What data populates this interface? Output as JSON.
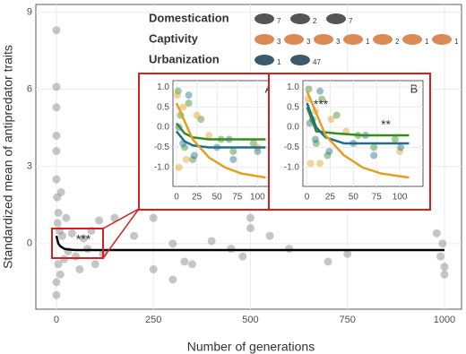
{
  "chart_data": [
    {
      "type": "scatter",
      "xlabel": "Number of generations",
      "ylabel": "Standardized mean of antipredator traits",
      "xlim": [
        -53,
        1044
      ],
      "ylim": [
        -2.55,
        9.3
      ],
      "xticks": [
        0,
        250,
        500,
        750,
        1000
      ],
      "yticks": [
        0,
        3,
        6,
        9
      ],
      "grid": true,
      "annotation": "***",
      "legend": [
        {
          "label": "Domestication",
          "color": "#3a8a1e",
          "counts": [
            7,
            2,
            7
          ]
        },
        {
          "label": "Captivity",
          "color": "#e0a020",
          "counts": [
            3,
            3,
            3,
            1,
            2,
            1,
            1
          ]
        },
        {
          "label": "Urbanization",
          "color": "#1f6f8b",
          "counts": [
            1,
            47
          ]
        }
      ],
      "series": [
        {
          "kind": "points",
          "color": "#808080",
          "x": [
            0,
            0,
            0,
            0,
            0,
            0,
            0,
            0,
            2,
            3,
            5,
            5,
            8,
            10,
            12,
            15,
            20,
            25,
            30,
            40,
            50,
            60,
            70,
            80,
            90,
            100,
            110,
            120,
            150,
            200,
            250,
            300,
            330,
            350,
            400,
            450,
            480,
            500,
            550,
            600,
            700,
            750,
            980,
            990,
            995,
            1000,
            1000,
            500,
            300,
            250
          ],
          "y": [
            8.3,
            6.1,
            5.3,
            4.2,
            3.6,
            2.5,
            -1.5,
            -2.0,
            1.8,
            0.8,
            1.2,
            -0.8,
            0.5,
            -1.2,
            2.0,
            0.3,
            -0.6,
            1.0,
            -0.3,
            0.4,
            -0.5,
            -1.0,
            0.2,
            -0.2,
            0.5,
            -0.8,
            0.9,
            -0.4,
            1.0,
            0.3,
            -1.0,
            0.0,
            -0.7,
            -0.8,
            0.1,
            -0.2,
            -0.5,
            1.0,
            0.3,
            -0.2,
            -0.7,
            -0.4,
            0.4,
            -0.5,
            0.0,
            -1.2,
            -0.9,
            0.6,
            -1.4,
            1.0
          ]
        },
        {
          "kind": "line",
          "color": "#000000",
          "x": [
            0,
            5,
            10,
            20,
            30,
            50,
            100,
            1000
          ],
          "y": [
            0.3,
            0.0,
            -0.1,
            -0.2,
            -0.23,
            -0.25,
            -0.25,
            -0.25
          ]
        }
      ]
    },
    {
      "type": "scatter",
      "panel": "A",
      "xlim": [
        -4.4,
        125
      ],
      "ylim": [
        -1.47,
        1.16
      ],
      "xticks": [
        0,
        25,
        50,
        75,
        100
      ],
      "yticks": [
        {
          "value": 1,
          "label": "1.0"
        },
        0.5,
        {
          "value": 0,
          "label": "0.0"
        },
        -0.5,
        {
          "value": -1,
          "label": "-1.0"
        }
      ],
      "grid": true,
      "series": [
        {
          "kind": "points",
          "color": "#3a8a1e",
          "x": [
            2,
            5,
            10,
            15,
            20,
            30,
            55,
            70,
            95
          ],
          "y": [
            0.9,
            0.3,
            -0.5,
            0.6,
            -0.8,
            0.2,
            -0.3,
            -0.6,
            -0.4
          ]
        },
        {
          "kind": "points",
          "color": "#e0a020",
          "x": [
            1,
            3,
            8,
            12,
            25,
            40,
            100
          ],
          "y": [
            0.8,
            -1.0,
            0.5,
            -0.8,
            0.3,
            -0.2,
            -0.5
          ]
        },
        {
          "kind": "points",
          "color": "#1f6f8b",
          "x": [
            3,
            8,
            15,
            22,
            50,
            65,
            70,
            100
          ],
          "y": [
            0.0,
            -0.4,
            0.8,
            -0.7,
            -0.5,
            -0.3,
            -0.8,
            -0.6
          ]
        },
        {
          "kind": "line",
          "color": "#3a8a1e",
          "x": [
            0,
            10,
            20,
            40,
            110
          ],
          "y": [
            0.1,
            -0.15,
            -0.25,
            -0.3,
            -0.3
          ]
        },
        {
          "kind": "line",
          "color": "#1f6f8b",
          "x": [
            0,
            10,
            20,
            40,
            110
          ],
          "y": [
            -0.1,
            -0.35,
            -0.45,
            -0.5,
            -0.5
          ]
        },
        {
          "kind": "line",
          "color": "#e0a020",
          "x": [
            0,
            20,
            40,
            60,
            80,
            110
          ],
          "y": [
            0.6,
            -0.3,
            -0.75,
            -1.0,
            -1.15,
            -1.25
          ]
        }
      ]
    },
    {
      "type": "scatter",
      "panel": "B",
      "xlim": [
        -4.4,
        125
      ],
      "ylim": [
        -1.47,
        1.16
      ],
      "xticks": [
        0,
        25,
        50,
        75,
        100
      ],
      "yticks": [
        {
          "value": 1,
          "label": "1.0"
        },
        0.5,
        {
          "value": 0,
          "label": "0.0"
        },
        -0.5,
        {
          "value": -1,
          "label": "-1.0"
        }
      ],
      "grid": true,
      "annotations": [
        "***",
        "**"
      ],
      "series": [
        {
          "kind": "points",
          "color": "#3a8a1e",
          "x": [
            2,
            6,
            10,
            16,
            22,
            32,
            55,
            72,
            95
          ],
          "y": [
            0.95,
            0.2,
            -0.4,
            0.7,
            -0.7,
            0.3,
            -0.2,
            -0.5,
            -0.3
          ]
        },
        {
          "kind": "points",
          "color": "#e0a020",
          "x": [
            1,
            4,
            9,
            14,
            26,
            42,
            100
          ],
          "y": [
            0.7,
            -0.9,
            0.4,
            -0.9,
            0.2,
            -0.1,
            -0.6
          ]
        },
        {
          "kind": "points",
          "color": "#1f6f8b",
          "x": [
            3,
            9,
            14,
            24,
            50,
            63,
            72,
            101
          ],
          "y": [
            0.1,
            -0.3,
            0.9,
            -0.6,
            -0.4,
            -0.2,
            -0.7,
            -0.5
          ]
        },
        {
          "kind": "line",
          "color": "#3a8a1e",
          "x": [
            0,
            10,
            30,
            60,
            110
          ],
          "y": [
            0.5,
            -0.1,
            -0.15,
            -0.2,
            -0.2
          ]
        },
        {
          "kind": "line",
          "color": "#1f6f8b",
          "x": [
            0,
            10,
            20,
            40,
            110
          ],
          "y": [
            0.6,
            0.0,
            -0.25,
            -0.4,
            -0.4
          ]
        },
        {
          "kind": "line",
          "color": "#e0a020",
          "x": [
            0,
            20,
            40,
            60,
            80,
            110
          ],
          "y": [
            0.9,
            -0.2,
            -0.7,
            -1.0,
            -1.15,
            -1.25
          ]
        }
      ]
    }
  ]
}
